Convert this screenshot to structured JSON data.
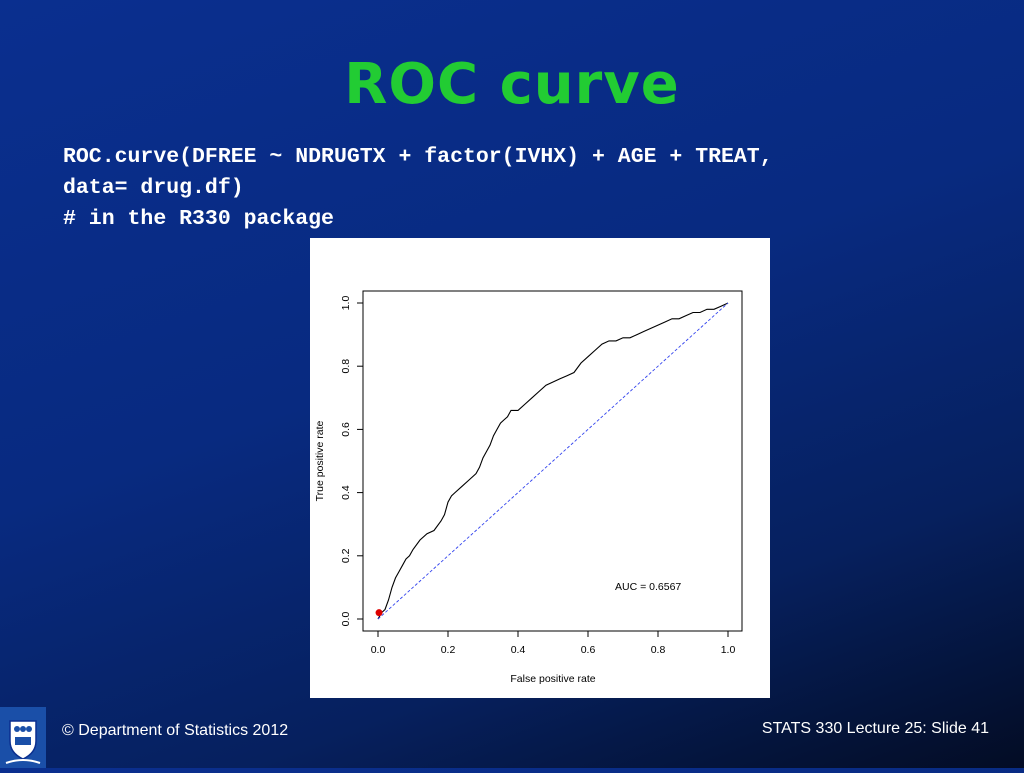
{
  "slide": {
    "title": "ROC curve",
    "code_lines": [
      "ROC.curve(DFREE ~ NDRUGTX + factor(IVHX) + AGE + TREAT,",
      "data= drug.df)",
      "# in the R330 package"
    ],
    "footer_left": "© Department of Statistics 2012",
    "footer_right": "STATS 330 Lecture 25: Slide 41",
    "logo_icon": "university-crest-icon"
  },
  "chart_data": {
    "type": "line",
    "xlabel": "False positive rate",
    "ylabel": "True positive rate",
    "xlim": [
      0,
      1
    ],
    "ylim": [
      0,
      1
    ],
    "x_ticks": [
      "0.0",
      "0.2",
      "0.4",
      "0.6",
      "0.8",
      "1.0"
    ],
    "y_ticks": [
      "0.0",
      "0.2",
      "0.4",
      "0.6",
      "0.8",
      "1.0"
    ],
    "annotation": "AUC =  0.6567",
    "series": [
      {
        "style": "solid",
        "color": "#000000",
        "x": [
          0.0,
          0.005,
          0.01,
          0.02,
          0.03,
          0.04,
          0.05,
          0.06,
          0.07,
          0.08,
          0.09,
          0.1,
          0.12,
          0.14,
          0.16,
          0.18,
          0.19,
          0.2,
          0.21,
          0.22,
          0.24,
          0.26,
          0.28,
          0.29,
          0.3,
          0.31,
          0.32,
          0.33,
          0.34,
          0.35,
          0.36,
          0.37,
          0.38,
          0.4,
          0.42,
          0.44,
          0.46,
          0.48,
          0.5,
          0.52,
          0.54,
          0.56,
          0.58,
          0.6,
          0.62,
          0.64,
          0.66,
          0.68,
          0.7,
          0.72,
          0.74,
          0.76,
          0.78,
          0.8,
          0.82,
          0.84,
          0.86,
          0.88,
          0.9,
          0.92,
          0.94,
          0.96,
          0.98,
          1.0
        ],
        "y": [
          0.0,
          0.01,
          0.02,
          0.03,
          0.06,
          0.1,
          0.13,
          0.15,
          0.17,
          0.19,
          0.2,
          0.22,
          0.25,
          0.27,
          0.28,
          0.31,
          0.33,
          0.37,
          0.39,
          0.4,
          0.42,
          0.44,
          0.46,
          0.48,
          0.51,
          0.53,
          0.55,
          0.58,
          0.6,
          0.62,
          0.63,
          0.64,
          0.66,
          0.66,
          0.68,
          0.7,
          0.72,
          0.74,
          0.75,
          0.76,
          0.77,
          0.78,
          0.81,
          0.83,
          0.85,
          0.87,
          0.88,
          0.88,
          0.89,
          0.89,
          0.9,
          0.91,
          0.92,
          0.93,
          0.94,
          0.95,
          0.95,
          0.96,
          0.97,
          0.97,
          0.98,
          0.98,
          0.99,
          1.0
        ]
      },
      {
        "style": "dashed",
        "color": "#3344ee",
        "x": [
          0.0,
          1.0
        ],
        "y": [
          0.0,
          1.0
        ]
      }
    ],
    "highlight_point": {
      "x": 0.003,
      "y": 0.02,
      "color": "#dd0000"
    },
    "grid": false,
    "legend": "none"
  }
}
